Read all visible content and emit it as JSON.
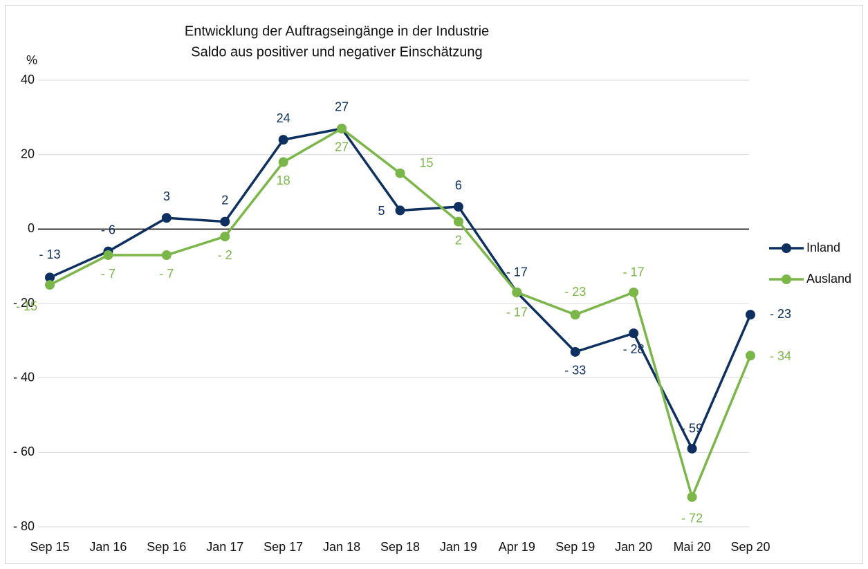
{
  "chart_data": {
    "type": "line",
    "title": "Entwicklung der Auftragseingänge in der Industrie",
    "subtitle": "Saldo aus positiver und negativer Einschätzung",
    "y_label": "%",
    "categories": [
      "Sep 15",
      "Jan 16",
      "Sep 16",
      "Jan 17",
      "Sep 17",
      "Jan 18",
      "Sep 18",
      "Jan 19",
      "Apr 19",
      "Sep 19",
      "Jan 20",
      "Mai 20",
      "Sep 20"
    ],
    "series": [
      {
        "name": "Inland",
        "color": "#0d3060",
        "values": [
          -13,
          -6,
          3,
          2,
          24,
          27,
          5,
          6,
          -17,
          -33,
          -28,
          -59,
          -23
        ],
        "value_labels": [
          "- 13",
          "- 6",
          "3",
          "2",
          "24",
          "27",
          "5",
          "6",
          "- 17",
          "- 33",
          "- 28",
          "- 59",
          "- 23"
        ]
      },
      {
        "name": "Ausland",
        "color": "#7ab648",
        "values": [
          -15,
          -7,
          -7,
          -2,
          18,
          27,
          15,
          2,
          -17,
          -23,
          -17,
          -72,
          -34
        ],
        "value_labels": [
          "- 15",
          "- 7",
          "- 7",
          "- 2",
          "18",
          "27",
          "15",
          "2",
          "- 17",
          "- 23",
          "- 17",
          "- 72",
          "- 34"
        ]
      }
    ],
    "ylim": [
      -80,
      40
    ],
    "yticks": [
      {
        "value": -80,
        "label": "- 80"
      },
      {
        "value": -60,
        "label": "- 60"
      },
      {
        "value": -40,
        "label": "- 40"
      },
      {
        "value": -20,
        "label": "- 20"
      },
      0,
      20,
      40
    ],
    "grid": true,
    "legend": "right"
  }
}
